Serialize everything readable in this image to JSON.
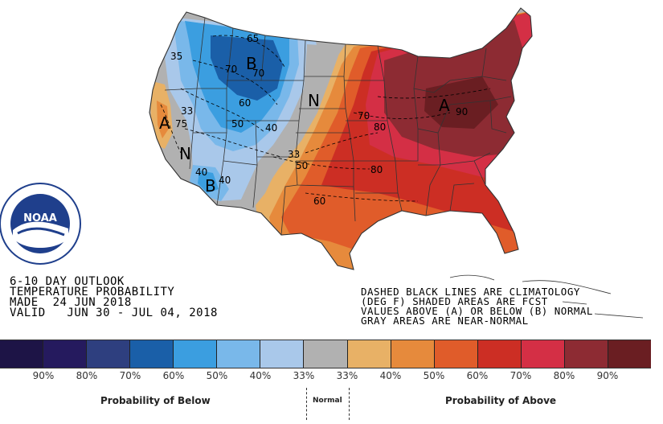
{
  "outlook": {
    "line1": "6-10 DAY OUTLOOK",
    "line2": "TEMPERATURE PROBABILITY",
    "line3": "MADE  24 JUN 2018",
    "line4": "VALID   JUN 30 - JUL 04, 2018"
  },
  "notes": {
    "line1": "DASHED BLACK LINES ARE CLIMATOLOGY",
    "line2": "(DEG F) SHADED AREAS ARE FCST",
    "line3": "VALUES ABOVE (A) OR BELOW (B) NORMAL",
    "line4": "GRAY AREAS ARE NEAR-NORMAL"
  },
  "logo": {
    "text": "NOAA"
  },
  "map_markers": {
    "b_north": "B",
    "b_southwest": "B",
    "a_east": "A",
    "a_west": "A",
    "n_central": "N",
    "n_west": "N"
  },
  "contour_labels": {
    "c65": "65",
    "c70": "70",
    "c70b": "70",
    "c60": "60",
    "c50": "50",
    "c40": "40",
    "c40b": "40",
    "c33": "33",
    "c33b": "33",
    "c35": "35",
    "c50b": "50",
    "c60b": "60",
    "c70c": "70",
    "c80": "80",
    "c80b": "80",
    "c90": "90",
    "c75": "75",
    "c40c": "40"
  },
  "legend": {
    "colors": [
      "#1d1446",
      "#251a5e",
      "#2e3f7f",
      "#1a5fa8",
      "#3b9ee0",
      "#79b8ea",
      "#a9c8ea",
      "#b1b1b1",
      "#e8b166",
      "#e68a3c",
      "#e05c2a",
      "#cc2e24",
      "#d42f45",
      "#8d2b33",
      "#6a1e22"
    ],
    "percents": [
      "90%",
      "80%",
      "70%",
      "60%",
      "50%",
      "40%",
      "33%",
      "33%",
      "40%",
      "50%",
      "60%",
      "70%",
      "80%",
      "90%"
    ],
    "below_label": "Probability of Below",
    "normal_label": "Normal",
    "above_label": "Probability of Above"
  }
}
